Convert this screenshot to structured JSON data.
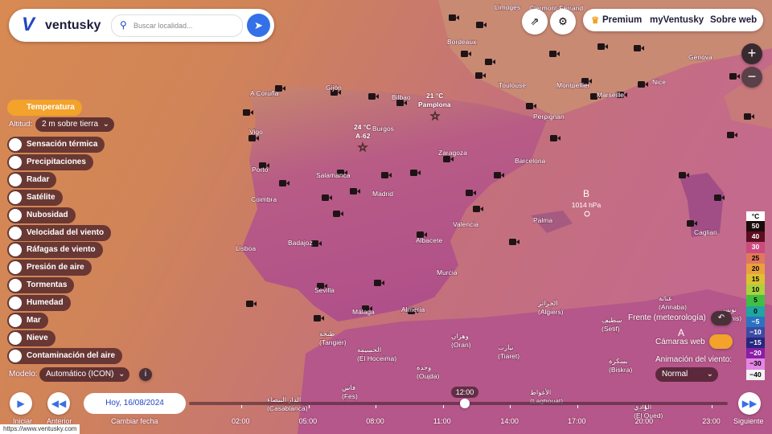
{
  "header": {
    "logo": "ventusky",
    "search_placeholder": "Buscar localidad...",
    "nav": [
      "Premium",
      "myVentusky",
      "Sobre web"
    ]
  },
  "sidebar": {
    "active_layer": "Temperatura",
    "altitude_label": "Altitud:",
    "altitude_value": "2 m sobre tierra",
    "layers": [
      "Sensación térmica",
      "Precipitaciones",
      "Radar",
      "Satélite",
      "Nubosidad",
      "Velocidad del viento",
      "Ráfagas de viento",
      "Presión de aire",
      "Tormentas",
      "Humedad",
      "Mar",
      "Nieve",
      "Contaminación del aire"
    ],
    "model_label": "Modelo:",
    "model_value": "Automático (ICON)"
  },
  "right_panel": {
    "fronts": "Frente (meteorología)",
    "webcams": "Cámaras web",
    "wind_animation_label": "Animación del viento:",
    "wind_animation_value": "Normal"
  },
  "legend": {
    "unit": "°C",
    "items": [
      {
        "label": "50",
        "color": "#1c0b0b"
      },
      {
        "label": "40",
        "color": "#5c0d1f"
      },
      {
        "label": "30",
        "color": "#cc4a80"
      },
      {
        "label": "25",
        "color": "#e2785a"
      },
      {
        "label": "20",
        "color": "#eba040"
      },
      {
        "label": "15",
        "color": "#dcc232"
      },
      {
        "label": "10",
        "color": "#a9d23c"
      },
      {
        "label": "5",
        "color": "#43be44"
      },
      {
        "label": "0",
        "color": "#1ea6a0"
      },
      {
        "label": "−5",
        "color": "#2c72c2"
      },
      {
        "label": "−10",
        "color": "#3b4aa2"
      },
      {
        "label": "−15",
        "color": "#26267e"
      },
      {
        "label": "−20",
        "color": "#8a1ea6"
      },
      {
        "label": "−30",
        "color": "#e486e4"
      },
      {
        "label": "−40",
        "color": "#f2f2f2"
      }
    ]
  },
  "map": {
    "points": [
      {
        "temp": "21 °C",
        "name": "Pamplona"
      },
      {
        "temp": "24 °C",
        "name": "A-62"
      }
    ],
    "pressure": [
      {
        "letter": "B",
        "value": "1014 hPa"
      },
      {
        "letter": "A"
      }
    ],
    "cities": [
      {
        "name": "Limoges"
      },
      {
        "name": "Clermont-Ferrand"
      },
      {
        "name": "Bordeaux"
      },
      {
        "name": "Genova"
      },
      {
        "name": "Toulouse"
      },
      {
        "name": "Montpellier"
      },
      {
        "name": "Marseille"
      },
      {
        "name": "Nice"
      },
      {
        "name": "A Coruña"
      },
      {
        "name": "Gijón"
      },
      {
        "name": "Bilbao"
      },
      {
        "name": "Perpignan"
      },
      {
        "name": "Vigo"
      },
      {
        "name": "Burgos"
      },
      {
        "name": "Zaragoza"
      },
      {
        "name": "Barcelona"
      },
      {
        "name": "Porto"
      },
      {
        "name": "Salamanca"
      },
      {
        "name": "Coimbra"
      },
      {
        "name": "Madrid"
      },
      {
        "name": "Valencia"
      },
      {
        "name": "Palma"
      },
      {
        "name": "Lisboa"
      },
      {
        "name": "Badajoz"
      },
      {
        "name": "Albacete"
      },
      {
        "name": "Cagliari"
      },
      {
        "name": "Murcia"
      },
      {
        "name": "Sevilla"
      },
      {
        "name": "Almería"
      },
      {
        "name": "Málaga"
      },
      {
        "name": "الجزائر",
        "latin": "(Algiers)"
      },
      {
        "name": "عنابة",
        "latin": "(Annaba)"
      },
      {
        "name": "تونس",
        "latin": "(Tunis)"
      },
      {
        "name": "سطيف",
        "latin": "(Setif)"
      },
      {
        "name": "طنجة",
        "latin": "(Tangier)"
      },
      {
        "name": "الحسيمة",
        "latin": "(El Hoceima)"
      },
      {
        "name": "وهران",
        "latin": "(Oran)"
      },
      {
        "name": "تيارت",
        "latin": "(Tiaret)"
      },
      {
        "name": "بسكرة",
        "latin": "(Biskra)"
      },
      {
        "name": "وجدة",
        "latin": "(Oujda)"
      },
      {
        "name": "فاس",
        "latin": "(Fes)"
      },
      {
        "name": "الأغواط",
        "latin": "(Laghouat)"
      },
      {
        "name": "الدار البيضاء",
        "latin": "(Casablanca)"
      },
      {
        "name": "الوادي",
        "latin": "(El Oued)"
      }
    ]
  },
  "timeline": {
    "play": "Iniciar",
    "previous": "Anterior",
    "date": "Hoy, 16/08/2024",
    "change_date": "Cambiar fecha",
    "current_time": "12:00",
    "times": [
      "02:00",
      "05:00",
      "08:00",
      "11:00",
      "14:00",
      "17:00",
      "20:00",
      "23:00"
    ],
    "next": "Siguiente"
  },
  "footer": {
    "url": "https://www.ventusky.com"
  }
}
